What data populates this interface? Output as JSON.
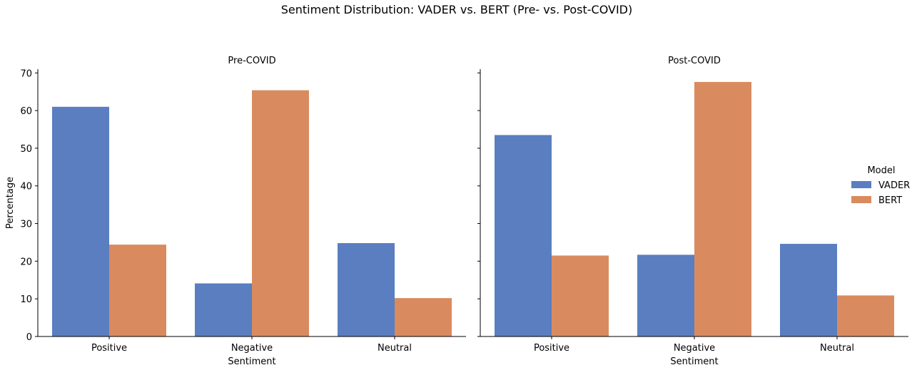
{
  "figure": {
    "title": "Sentiment Distribution: VADER vs. BERT (Pre- vs. Post-COVID)"
  },
  "legend": {
    "title": "Model",
    "placement": "right"
  },
  "colors": {
    "VADER": "#5a7ec0",
    "BERT": "#d98b5f"
  },
  "chart_data": [
    {
      "type": "bar",
      "title": "Pre-COVID",
      "categories": [
        "Positive",
        "Negative",
        "Neutral"
      ],
      "series": [
        {
          "name": "VADER",
          "values": [
            61.0,
            14.1,
            24.8
          ]
        },
        {
          "name": "BERT",
          "values": [
            24.4,
            65.4,
            10.2
          ]
        }
      ],
      "xlabel": "Sentiment",
      "ylabel": "Percentage",
      "ylim": [
        0,
        71
      ],
      "yticks": [
        0,
        10,
        20,
        30,
        40,
        50,
        60,
        70
      ],
      "grid": false
    },
    {
      "type": "bar",
      "title": "Post-COVID",
      "categories": [
        "Positive",
        "Negative",
        "Neutral"
      ],
      "series": [
        {
          "name": "VADER",
          "values": [
            53.5,
            21.7,
            24.6
          ]
        },
        {
          "name": "BERT",
          "values": [
            21.5,
            67.6,
            10.9
          ]
        }
      ],
      "xlabel": "Sentiment",
      "ylabel": "",
      "ylim": [
        0,
        71
      ],
      "yticks": [
        0,
        10,
        20,
        30,
        40,
        50,
        60,
        70
      ],
      "grid": false
    }
  ]
}
